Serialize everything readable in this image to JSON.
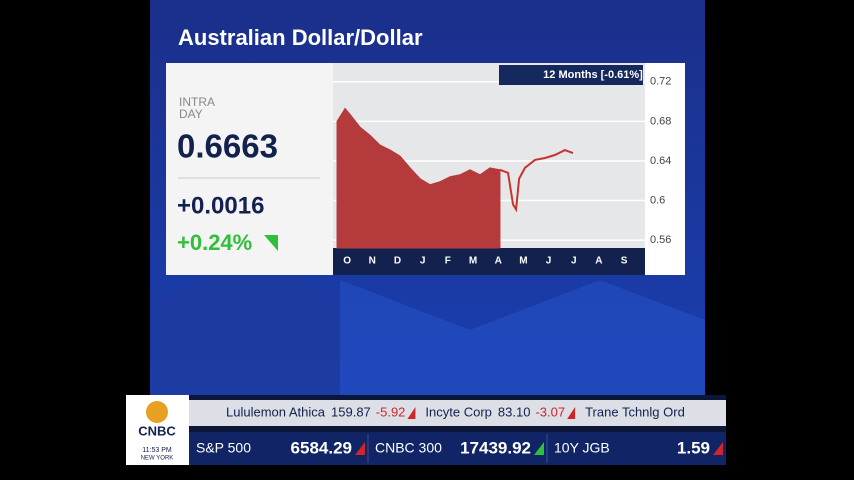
{
  "chart_data": {
    "type": "area-line",
    "title": "Australian Dollar/Dollar",
    "badge": "12 Months [-0.61%]",
    "xlim": [
      -0.56,
      11.83
    ],
    "xticks": [
      {
        "value": 0,
        "label": "O"
      },
      {
        "value": 1,
        "label": "N"
      },
      {
        "value": 2,
        "label": "D"
      },
      {
        "value": 3,
        "label": "J"
      },
      {
        "value": 4,
        "label": "F"
      },
      {
        "value": 5,
        "label": "M"
      },
      {
        "value": 6,
        "label": "A"
      },
      {
        "value": 7,
        "label": "M"
      },
      {
        "value": 8,
        "label": "J"
      },
      {
        "value": 9,
        "label": "J"
      },
      {
        "value": 10,
        "label": "A"
      },
      {
        "value": 11,
        "label": "S"
      }
    ],
    "ylim": [
      0.552,
      0.739
    ],
    "yticks": [
      0.56,
      0.6,
      0.64,
      0.68,
      0.72
    ],
    "grid": true,
    "series": [
      {
        "fill": true,
        "color": "#b53a3c",
        "x": [
          -0.4,
          -0.08,
          0.12,
          0.52,
          0.91,
          1.31,
          1.71,
          2.1,
          2.5,
          2.9,
          3.29,
          3.69,
          4.09,
          4.48,
          4.88,
          5.28,
          5.67,
          6.07
        ],
        "values": [
          0.68,
          0.693,
          0.687,
          0.674,
          0.666,
          0.656,
          0.651,
          0.645,
          0.633,
          0.622,
          0.616,
          0.619,
          0.624,
          0.626,
          0.631,
          0.626,
          0.633,
          0.631
        ]
      },
      {
        "fill": false,
        "color": "#c8322f",
        "x": [
          6.07,
          6.39,
          6.59,
          6.71,
          6.83,
          7.06,
          7.46,
          7.86,
          8.25,
          8.65,
          8.97
        ],
        "values": [
          0.631,
          0.628,
          0.596,
          0.591,
          0.622,
          0.633,
          0.641,
          0.643,
          0.646,
          0.651,
          0.648
        ]
      }
    ]
  },
  "quote": {
    "label_line1": "INTRA",
    "label_line2": "DAY",
    "price": "0.6663",
    "change": "+0.0016",
    "percent": "+0.24%"
  },
  "logo": {
    "brand": "CNBC",
    "time": "11:53 PM",
    "city": "NEW YORK"
  },
  "ticker_top": [
    {
      "name": "Lululemon Athica",
      "price": "159.87",
      "change": "-5.92"
    },
    {
      "name": "Incyte Corp",
      "price": "83.10",
      "change": "-3.07"
    },
    {
      "name": "Trane Tchnlg Ord",
      "price": "",
      "change": ""
    }
  ],
  "ticker_bottom": [
    {
      "name": "S&P 500",
      "price": "6584.29"
    },
    {
      "name": "CNBC 300",
      "price": "17439.92"
    },
    {
      "name": "10Y JGB",
      "price": "1.59"
    }
  ]
}
